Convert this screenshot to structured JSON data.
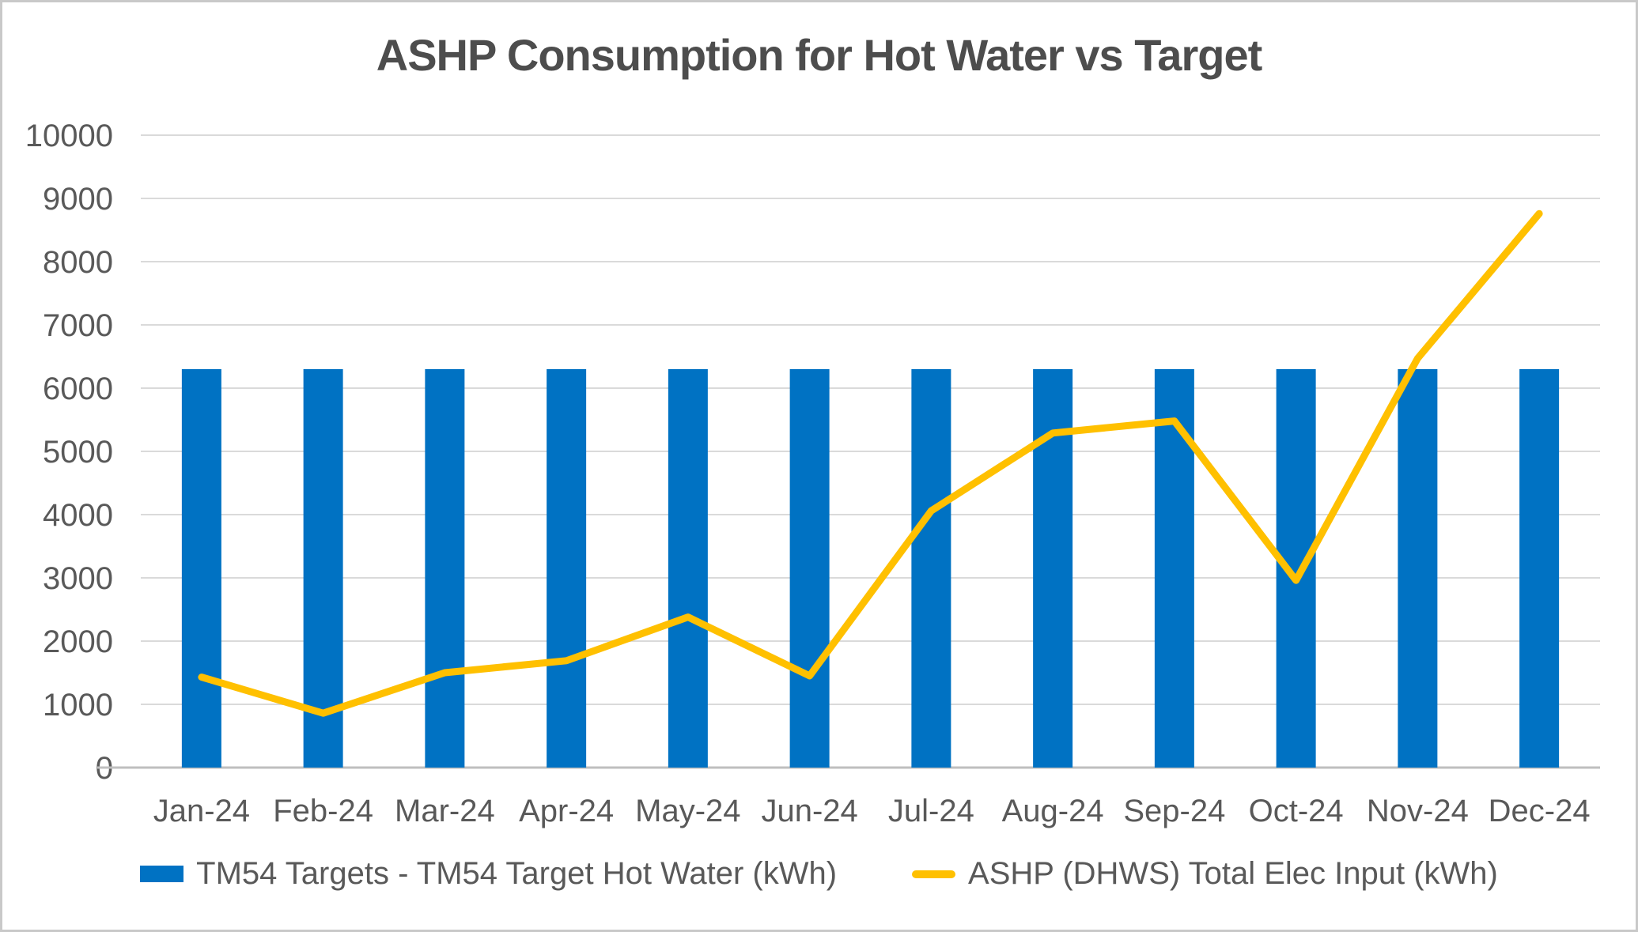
{
  "chart_data": {
    "type": "combo-bar-line",
    "title": "ASHP Consumption for Hot Water vs Target",
    "categories": [
      "Jan-24",
      "Feb-24",
      "Mar-24",
      "Apr-24",
      "May-24",
      "Jun-24",
      "Jul-24",
      "Aug-24",
      "Sep-24",
      "Oct-24",
      "Nov-24",
      "Dec-24"
    ],
    "series": [
      {
        "name": "TM54 Targets - TM54 Target Hot Water (kWh)",
        "type": "bar",
        "color": "#0072C3",
        "values": [
          6300,
          6300,
          6300,
          6300,
          6300,
          6300,
          6300,
          6300,
          6300,
          6300,
          6300,
          6300
        ]
      },
      {
        "name": "ASHP (DHWS) Total Elec Input (kWh)",
        "type": "line",
        "color": "#FFC000",
        "values": [
          1430,
          860,
          1500,
          1690,
          2380,
          1450,
          4060,
          5290,
          5480,
          2960,
          6470,
          8760
        ]
      }
    ],
    "xlabel": "",
    "ylabel": "",
    "ylim": [
      0,
      10000
    ],
    "ytick_step": 1000,
    "yticks": [
      0,
      1000,
      2000,
      3000,
      4000,
      5000,
      6000,
      7000,
      8000,
      9000,
      10000
    ],
    "grid": true,
    "legend_position": "bottom"
  },
  "colors": {
    "bar": "#0072C3",
    "line": "#FFC000",
    "grid": "#DADADA",
    "axis_line": "#BFBFBF",
    "tick_text": "#595959",
    "title_text": "#4D4D4D",
    "background": "#FFFFFF",
    "border": "#C9C9C9"
  }
}
